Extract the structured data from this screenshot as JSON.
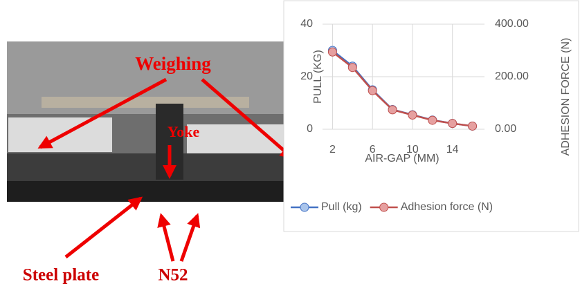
{
  "photo_labels": {
    "weighing": "Weighing",
    "yoke": "Yoke",
    "steel_plate": "Steel plate",
    "magnet": "N52"
  },
  "chart_data": {
    "type": "line",
    "x_label": "AIR-GAP (MM)",
    "y_label": "PULL (KG)",
    "y2_label": "ADHESION FORCE (N)",
    "x": [
      2,
      4,
      6,
      8,
      10,
      12,
      14,
      16
    ],
    "xlim": [
      1,
      17
    ],
    "xticks": [
      2,
      6,
      10,
      14
    ],
    "ylim": [
      0,
      40
    ],
    "yticks": [
      0,
      20,
      40
    ],
    "y2lim": [
      0,
      400
    ],
    "y2ticks": [
      {
        "value": 0,
        "label": "0.00"
      },
      {
        "value": 200,
        "label": "200.00"
      },
      {
        "value": 400,
        "label": "400.00"
      }
    ],
    "grid": true,
    "legend": "bottom",
    "series": [
      {
        "name": "Pull (kg)",
        "color": "#4472c4",
        "values": [
          30,
          24,
          15,
          7.5,
          5.5,
          3.5,
          2.2,
          1.2
        ]
      },
      {
        "name": "Adhesion force (N)",
        "color": "#c0504d",
        "axis": "y2",
        "values": [
          294,
          235,
          147,
          74,
          54,
          34,
          22,
          12
        ]
      }
    ]
  }
}
